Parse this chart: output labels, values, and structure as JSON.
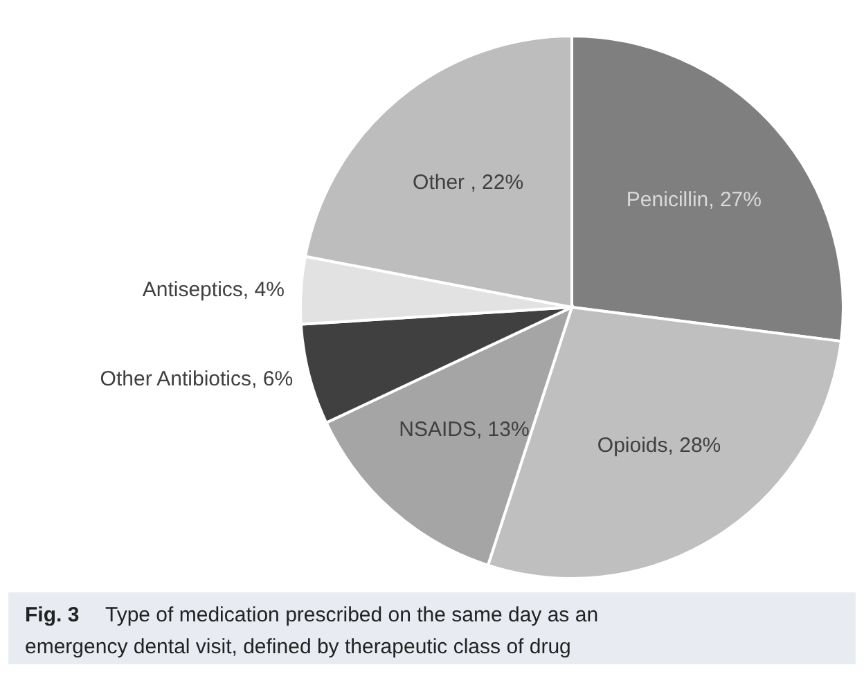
{
  "chart_data": {
    "type": "pie",
    "categories": [
      "Penicillin",
      "Opioids",
      "NSAIDS",
      "Other Antibiotics",
      "Antiseptics",
      "Other "
    ],
    "values": [
      27,
      28,
      13,
      6,
      4,
      22
    ],
    "colors": [
      "#7f7f7f",
      "#bfbfbf",
      "#a5a5a5",
      "#404040",
      "#e2e2e2",
      "#bdbdbd"
    ],
    "value_labels": [
      ", 27%",
      ", 28%",
      ", 13%",
      ", 6%",
      ", 4%",
      ", 22%"
    ],
    "annotations": [
      "Fig. 3",
      "Type of medication prescribed on the same day as an emergency dental visit, defined by therapeutic class of drug"
    ]
  }
}
